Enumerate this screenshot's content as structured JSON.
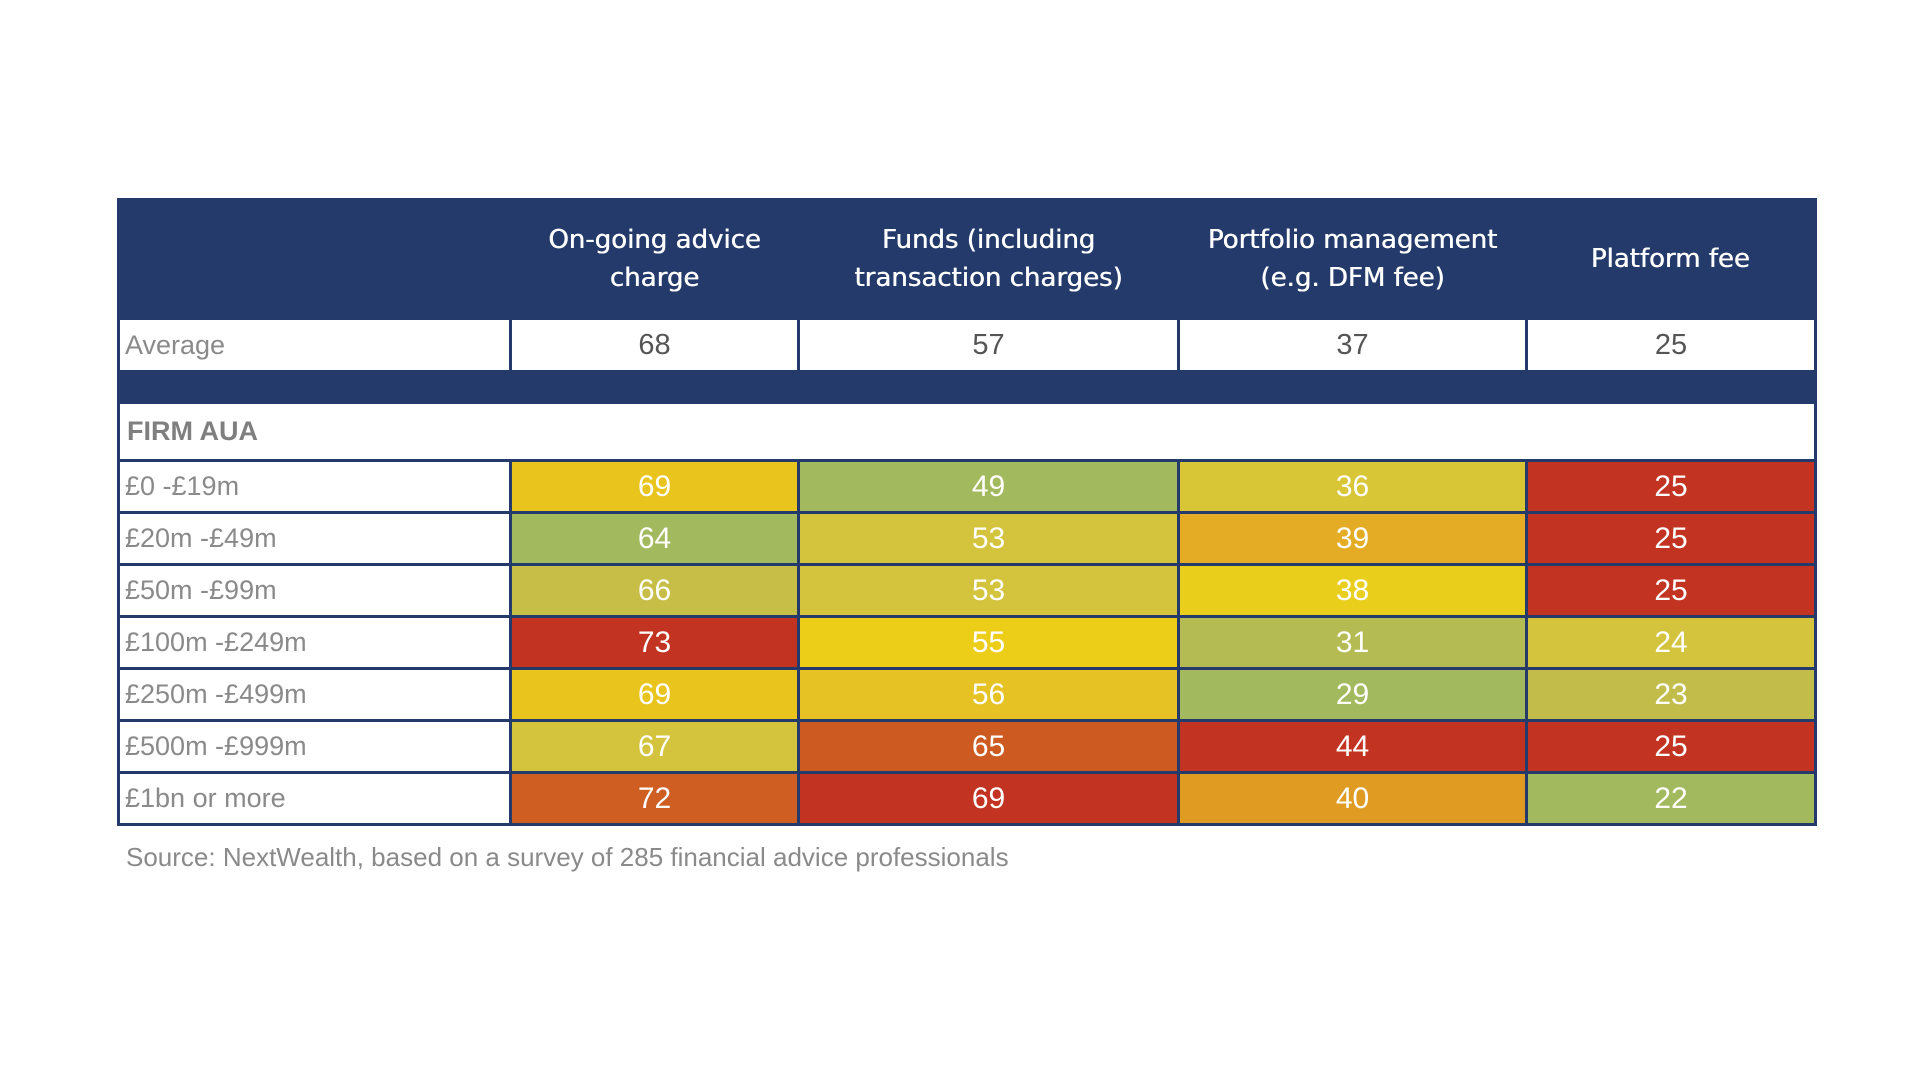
{
  "chart_data": {
    "type": "table",
    "columns": [
      "On-going advice charge",
      "Funds (including transaction charges)",
      "Portfolio management (e.g. DFM fee)",
      "Platform fee"
    ],
    "average": {
      "label": "Average",
      "values": [
        68,
        57,
        37,
        25
      ]
    },
    "section_label": "FIRM AUA",
    "rows": [
      {
        "label": "£0 -£19m",
        "values": [
          69,
          49,
          36,
          25
        ]
      },
      {
        "label": "£20m -£49m",
        "values": [
          64,
          53,
          39,
          25
        ]
      },
      {
        "label": "£50m -£99m",
        "values": [
          66,
          53,
          38,
          25
        ]
      },
      {
        "label": "£100m -£249m",
        "values": [
          73,
          55,
          31,
          24
        ]
      },
      {
        "label": "£250m -£499m",
        "values": [
          69,
          56,
          29,
          23
        ]
      },
      {
        "label": "£500m -£999m",
        "values": [
          67,
          65,
          44,
          25
        ]
      },
      {
        "label": "£1bn or more",
        "values": [
          72,
          69,
          40,
          22
        ]
      }
    ],
    "cell_colors": [
      [
        "#e8c41d",
        "#a3b95d",
        "#d9c637",
        "#c33322"
      ],
      [
        "#a3b95d",
        "#d4c33c",
        "#e3ac24",
        "#c33322"
      ],
      [
        "#c6be47",
        "#d4c33c",
        "#e9ce1c",
        "#c33322"
      ],
      [
        "#c33322",
        "#ecce18",
        "#b3bb52",
        "#d4c33c"
      ],
      [
        "#e8c41d",
        "#e6c224",
        "#a3b95d",
        "#c2bd4b"
      ],
      [
        "#d4c33c",
        "#cd5a21",
        "#c33322",
        "#c33322"
      ],
      [
        "#cf5e22",
        "#c33322",
        "#e09c22",
        "#a3b95d"
      ]
    ]
  },
  "source_note": "Source: NextWealth, based on a survey of 285 financial advice professionals"
}
